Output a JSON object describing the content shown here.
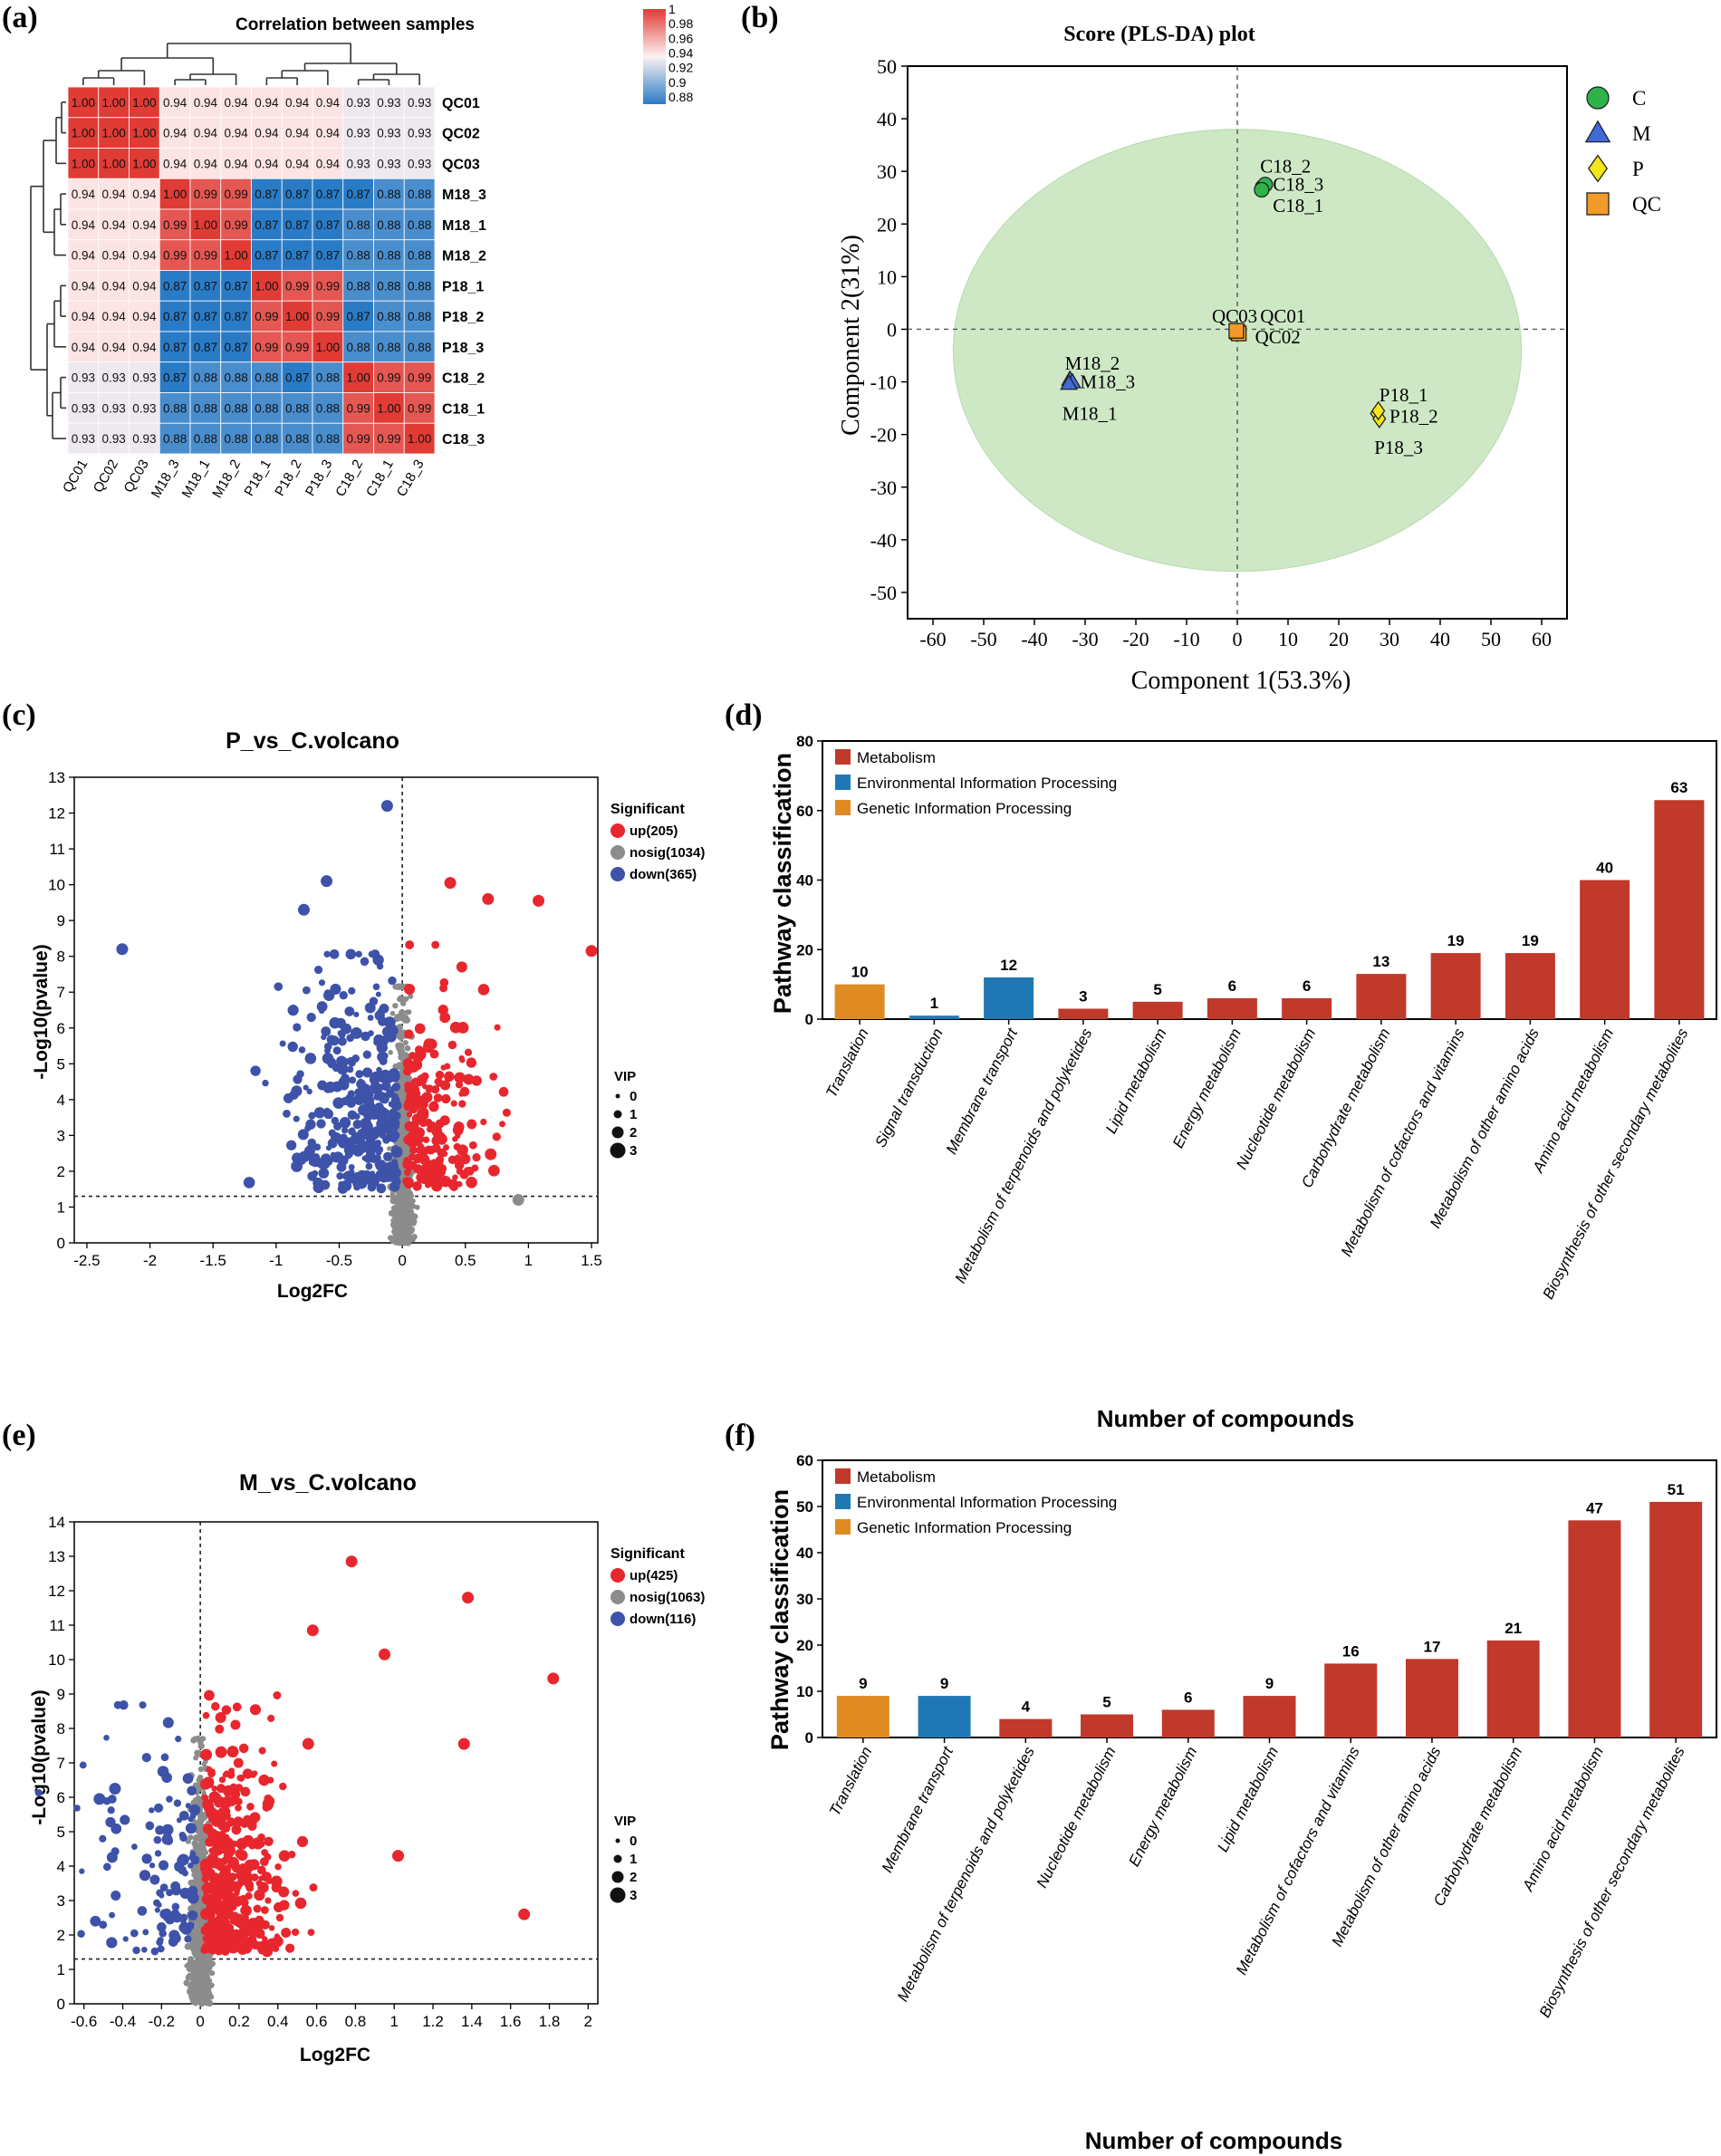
{
  "panel_labels": [
    "(a)",
    "(b)",
    "(c)",
    "(d)",
    "(e)",
    "(f)"
  ],
  "colors": {
    "up": "#e8262e",
    "nosig": "#8c8c8c",
    "down": "#3d52a8",
    "metabolism": "#c0392b",
    "env": "#1f78b4",
    "genetic": "#e08a22",
    "heat_high": "#e13b35",
    "heat_mid": "#fdf2f2",
    "heat_low": "#2a7bc6",
    "ellipse": "#c9e6c0"
  },
  "chart_data": [
    {
      "type": "heatmap",
      "title": "Correlation between samples",
      "rows": [
        "QC01",
        "QC02",
        "QC03",
        "M18_3",
        "M18_1",
        "M18_2",
        "P18_1",
        "P18_2",
        "P18_3",
        "C18_2",
        "C18_1",
        "C18_3"
      ],
      "cols": [
        "QC01",
        "QC02",
        "QC03",
        "M18_3",
        "M18_1",
        "M18_2",
        "P18_1",
        "P18_2",
        "P18_3",
        "C18_2",
        "C18_1",
        "C18_3"
      ],
      "cells": [
        [
          "1.00",
          "1.00",
          "1.00",
          "0.94",
          "0.94",
          "0.94",
          "0.94",
          "0.94",
          "0.94",
          "0.93",
          "0.93",
          "0.93"
        ],
        [
          "1.00",
          "1.00",
          "1.00",
          "0.94",
          "0.94",
          "0.94",
          "0.94",
          "0.94",
          "0.94",
          "0.93",
          "0.93",
          "0.93"
        ],
        [
          "1.00",
          "1.00",
          "1.00",
          "0.94",
          "0.94",
          "0.94",
          "0.94",
          "0.94",
          "0.94",
          "0.93",
          "0.93",
          "0.93"
        ],
        [
          "0.94",
          "0.94",
          "0.94",
          "1.00",
          "0.99",
          "0.99",
          "0.87",
          "0.87",
          "0.87",
          "0.87",
          "0.88",
          "0.88"
        ],
        [
          "0.94",
          "0.94",
          "0.94",
          "0.99",
          "1.00",
          "0.99",
          "0.87",
          "0.87",
          "0.87",
          "0.88",
          "0.88",
          "0.88"
        ],
        [
          "0.94",
          "0.94",
          "0.94",
          "0.99",
          "0.99",
          "1.00",
          "0.87",
          "0.87",
          "0.87",
          "0.88",
          "0.88",
          "0.88"
        ],
        [
          "0.94",
          "0.94",
          "0.94",
          "0.87",
          "0.87",
          "0.87",
          "1.00",
          "0.99",
          "0.99",
          "0.88",
          "0.88",
          "0.88"
        ],
        [
          "0.94",
          "0.94",
          "0.94",
          "0.87",
          "0.87",
          "0.87",
          "0.99",
          "1.00",
          "0.99",
          "0.87",
          "0.88",
          "0.88"
        ],
        [
          "0.94",
          "0.94",
          "0.94",
          "0.87",
          "0.87",
          "0.87",
          "0.99",
          "0.99",
          "1.00",
          "0.88",
          "0.88",
          "0.88"
        ],
        [
          "0.93",
          "0.93",
          "0.93",
          "0.87",
          "0.88",
          "0.88",
          "0.88",
          "0.87",
          "0.88",
          "1.00",
          "0.99",
          "0.99"
        ],
        [
          "0.93",
          "0.93",
          "0.93",
          "0.88",
          "0.88",
          "0.88",
          "0.88",
          "0.88",
          "0.88",
          "0.99",
          "1.00",
          "0.99"
        ],
        [
          "0.93",
          "0.93",
          "0.93",
          "0.88",
          "0.88",
          "0.88",
          "0.88",
          "0.88",
          "0.88",
          "0.99",
          "0.99",
          "1.00"
        ]
      ],
      "colorbar_ticks": [
        "1",
        "0.98",
        "0.96",
        "0.94",
        "0.92",
        "0.9",
        "0.88"
      ],
      "colorbar_range": [
        0.87,
        1.0
      ]
    },
    {
      "type": "scatter",
      "title": "Score (PLS-DA) plot",
      "xlabel": "Component 1(53.3%)",
      "ylabel": "Component 2(31%)",
      "xlim": [
        -65,
        65
      ],
      "ylim": [
        -55,
        50
      ],
      "xticks": [
        -60,
        -50,
        -40,
        -30,
        -20,
        -10,
        0,
        10,
        20,
        30,
        40,
        50,
        60
      ],
      "yticks": [
        -50,
        -40,
        -30,
        -20,
        -10,
        0,
        10,
        20,
        30,
        40,
        50
      ],
      "ellipse": {
        "cx": 0,
        "cy": -4,
        "rx": 56,
        "ry": 42
      },
      "legend": [
        {
          "name": "C",
          "shape": "circle",
          "color": "#2db34a"
        },
        {
          "name": "M",
          "shape": "triangle",
          "color": "#3f6ad8"
        },
        {
          "name": "P",
          "shape": "diamond",
          "color": "#f4e61c"
        },
        {
          "name": "QC",
          "shape": "square",
          "color": "#f39a2a"
        }
      ],
      "points": [
        {
          "group": "C",
          "x": 5,
          "y": 27
        },
        {
          "group": "C",
          "x": 5.5,
          "y": 27.5
        },
        {
          "group": "C",
          "x": 4.8,
          "y": 26.5
        },
        {
          "group": "M",
          "x": -33,
          "y": -9.5
        },
        {
          "group": "M",
          "x": -32.5,
          "y": -10
        },
        {
          "group": "M",
          "x": -33.2,
          "y": -10.3
        },
        {
          "group": "P",
          "x": 27.5,
          "y": -16
        },
        {
          "group": "P",
          "x": 28,
          "y": -17
        },
        {
          "group": "P",
          "x": 27.8,
          "y": -15.5
        },
        {
          "group": "QC",
          "x": 0,
          "y": -0.5
        },
        {
          "group": "QC",
          "x": 0.3,
          "y": -0.8
        },
        {
          "group": "QC",
          "x": -0.2,
          "y": -0.3
        }
      ],
      "labels": [
        {
          "text": "C18_2",
          "x": 4.5,
          "y": 31
        },
        {
          "text": "C18_3",
          "x": 7,
          "y": 27.5
        },
        {
          "text": "C18_1",
          "x": 7,
          "y": 23.5
        },
        {
          "text": "QC03",
          "x": -5,
          "y": 2.5
        },
        {
          "text": "QC01",
          "x": 4.5,
          "y": 2.5
        },
        {
          "text": "QC02",
          "x": 3.5,
          "y": -1.5
        },
        {
          "text": "M18_2",
          "x": -34,
          "y": -6.5
        },
        {
          "text": "M18_3",
          "x": -31,
          "y": -10
        },
        {
          "text": "M18_1",
          "x": -34.5,
          "y": -16
        },
        {
          "text": "P18_1",
          "x": 28,
          "y": -12.5
        },
        {
          "text": "P18_2",
          "x": 30,
          "y": -16.5
        },
        {
          "text": "P18_3",
          "x": 27,
          "y": -22.5
        }
      ]
    },
    {
      "type": "scatter",
      "title": "P_vs_C.volcano",
      "xlabel": "Log2FC",
      "ylabel": "-Log10(pvalue)",
      "xlim": [
        -2.6,
        1.55
      ],
      "ylim": [
        0,
        13
      ],
      "xticks": [
        "-2.5",
        "-2",
        "-1.5",
        "-1",
        "-0.5",
        "0",
        "0.5",
        "1",
        "1.5"
      ],
      "yticks": [
        "0",
        "1",
        "2",
        "3",
        "4",
        "5",
        "6",
        "7",
        "8",
        "9",
        "10",
        "11",
        "12",
        "13"
      ],
      "legend_title": "Significant",
      "legend": [
        "up(205)",
        "nosig(1034)",
        "down(365)"
      ],
      "vip_title": "VIP",
      "vip_values": [
        "0",
        "1",
        "2",
        "3"
      ],
      "threshold_y": 1.3,
      "counts": {
        "up": 205,
        "nosig": 1034,
        "down": 365
      },
      "highlight_points": [
        {
          "x": -2.22,
          "y": 8.2,
          "group": "down"
        },
        {
          "x": -0.12,
          "y": 12.2,
          "group": "down"
        },
        {
          "x": -0.6,
          "y": 10.1,
          "group": "down"
        },
        {
          "x": -0.78,
          "y": 9.3,
          "group": "down"
        },
        {
          "x": 0.38,
          "y": 10.05,
          "group": "up"
        },
        {
          "x": 0.68,
          "y": 9.6,
          "group": "up"
        },
        {
          "x": 1.08,
          "y": 9.55,
          "group": "up"
        },
        {
          "x": 1.5,
          "y": 8.15,
          "group": "up"
        },
        {
          "x": 0.92,
          "y": 1.2,
          "group": "nosig"
        }
      ]
    },
    {
      "type": "bar",
      "title": "",
      "xlabel": "Number of compounds",
      "ylabel": "Pathway classification",
      "ylim": [
        0,
        80
      ],
      "yticks": [
        "0",
        "20",
        "40",
        "60",
        "80"
      ],
      "legend": [
        "Metabolism",
        "Environmental Information Processing",
        "Genetic Information Processing"
      ],
      "categories": [
        "Translation",
        "Signal transduction",
        "Membrane transport",
        "Metabolism of terpenoids and polyketides",
        "Lipid metabolism",
        "Energy metabolism",
        "Nucleotide metabolism",
        "Carbohydrate metabolism",
        "Metabolism of cofactors and vitamins",
        "Metabolism of other amino acids",
        "Amino acid metabolism",
        "Biosynthesis of other secondary metabolites"
      ],
      "values": [
        10,
        1,
        12,
        3,
        5,
        6,
        6,
        13,
        19,
        19,
        40,
        63
      ],
      "classes": [
        "genetic",
        "env",
        "env",
        "metabolism",
        "metabolism",
        "metabolism",
        "metabolism",
        "metabolism",
        "metabolism",
        "metabolism",
        "metabolism",
        "metabolism"
      ]
    },
    {
      "type": "scatter",
      "title": "M_vs_C.volcano",
      "xlabel": "Log2FC",
      "ylabel": "-Log10(pvalue)",
      "xlim": [
        -0.65,
        2.05
      ],
      "ylim": [
        0,
        14
      ],
      "xticks": [
        "-0.6",
        "-0.4",
        "-0.2",
        "0",
        "0.2",
        "0.4",
        "0.6",
        "0.8",
        "1",
        "1.2",
        "1.4",
        "1.6",
        "1.8",
        "2"
      ],
      "yticks": [
        "0",
        "1",
        "2",
        "3",
        "4",
        "5",
        "6",
        "7",
        "8",
        "9",
        "10",
        "11",
        "12",
        "13",
        "14"
      ],
      "legend_title": "Significant",
      "legend": [
        "up(425)",
        "nosig(1063)",
        "down(116)"
      ],
      "vip_title": "VIP",
      "vip_values": [
        "0",
        "1",
        "2",
        "3"
      ],
      "threshold_y": 1.3,
      "counts": {
        "up": 425,
        "nosig": 1063,
        "down": 116
      },
      "highlight_points": [
        {
          "x": 0.78,
          "y": 12.85,
          "group": "up"
        },
        {
          "x": 1.38,
          "y": 11.8,
          "group": "up"
        },
        {
          "x": 0.58,
          "y": 10.85,
          "group": "up"
        },
        {
          "x": 0.95,
          "y": 10.15,
          "group": "up"
        },
        {
          "x": 1.82,
          "y": 9.45,
          "group": "up"
        },
        {
          "x": 1.36,
          "y": 7.55,
          "group": "up"
        },
        {
          "x": 1.67,
          "y": 2.6,
          "group": "up"
        },
        {
          "x": 1.02,
          "y": 4.3,
          "group": "up"
        },
        {
          "x": -0.52,
          "y": 5.95,
          "group": "down"
        },
        {
          "x": -0.44,
          "y": 6.25,
          "group": "down"
        }
      ]
    },
    {
      "type": "bar",
      "title": "",
      "xlabel": "Number of compounds",
      "ylabel": "Pathway classification",
      "ylim": [
        0,
        60
      ],
      "yticks": [
        "0",
        "10",
        "20",
        "30",
        "40",
        "50",
        "60"
      ],
      "legend": [
        "Metabolism",
        "Environmental Information Processing",
        "Genetic Information Processing"
      ],
      "categories": [
        "Translation",
        "Membrane transport",
        "Metabolism of terpenoids and polyketides",
        "Nucleotide metabolism",
        "Energy metabolism",
        "Lipid metabolism",
        "Metabolism of cofactors and vitamins",
        "Metabolism of other amino acids",
        "Carbohydrate metabolism",
        "Amino acid metabolism",
        "Biosynthesis of other secondary metabolites"
      ],
      "values": [
        9,
        9,
        4,
        5,
        6,
        9,
        16,
        17,
        21,
        47,
        51
      ],
      "classes": [
        "genetic",
        "env",
        "metabolism",
        "metabolism",
        "metabolism",
        "metabolism",
        "metabolism",
        "metabolism",
        "metabolism",
        "metabolism",
        "metabolism"
      ]
    }
  ]
}
